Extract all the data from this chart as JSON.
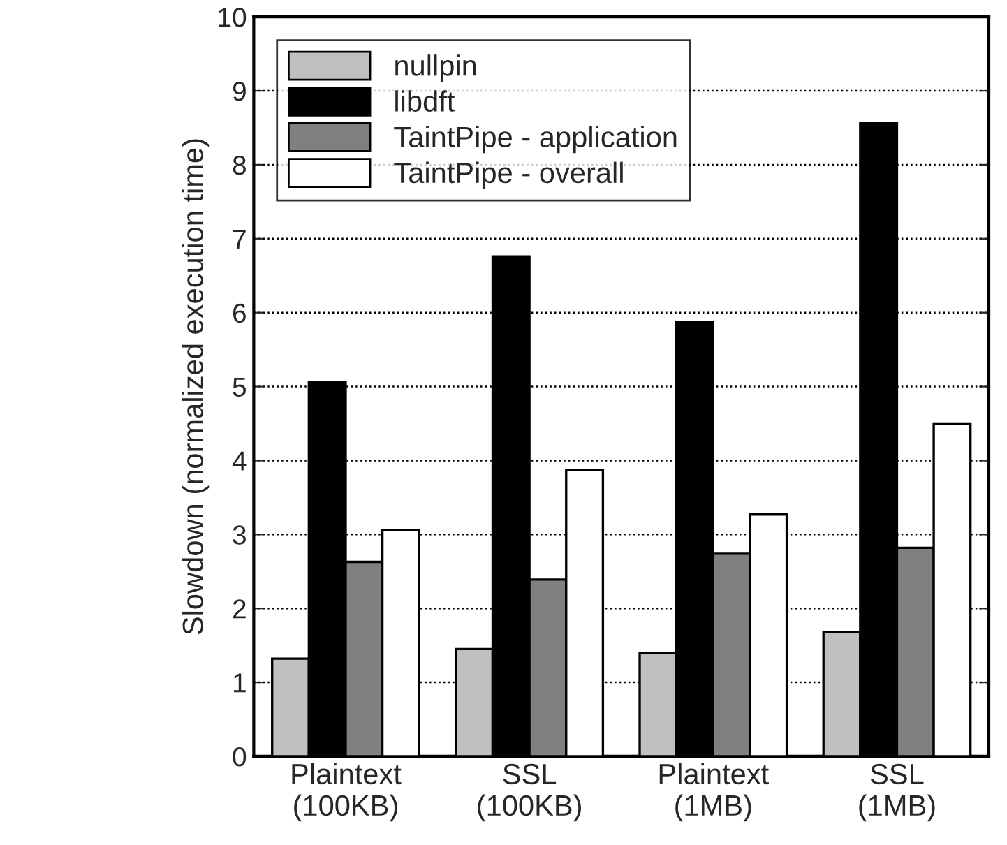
{
  "chart_data": {
    "type": "bar",
    "ylabel": "Slowdown (normalized execution time)",
    "categories": [
      "Plaintext\n(100KB)",
      "SSL\n(100KB)",
      "Plaintext\n(1MB)",
      "SSL\n(1MB)"
    ],
    "series": [
      {
        "name": "nullpin",
        "color": "#c0c0c0",
        "values": [
          1.32,
          1.45,
          1.4,
          1.68
        ]
      },
      {
        "name": "libdft",
        "color": "#000000",
        "values": [
          5.06,
          6.76,
          5.87,
          8.56
        ]
      },
      {
        "name": "TaintPipe - application",
        "color": "#808080",
        "values": [
          2.63,
          2.39,
          2.74,
          2.82
        ]
      },
      {
        "name": "TaintPipe - overall",
        "color": "#ffffff",
        "values": [
          3.06,
          3.87,
          3.27,
          4.5
        ]
      }
    ],
    "ylim": [
      0,
      10
    ],
    "yticks": [
      0,
      1,
      2,
      3,
      4,
      5,
      6,
      7,
      8,
      9,
      10
    ],
    "grid": "y",
    "legend": "top left"
  }
}
